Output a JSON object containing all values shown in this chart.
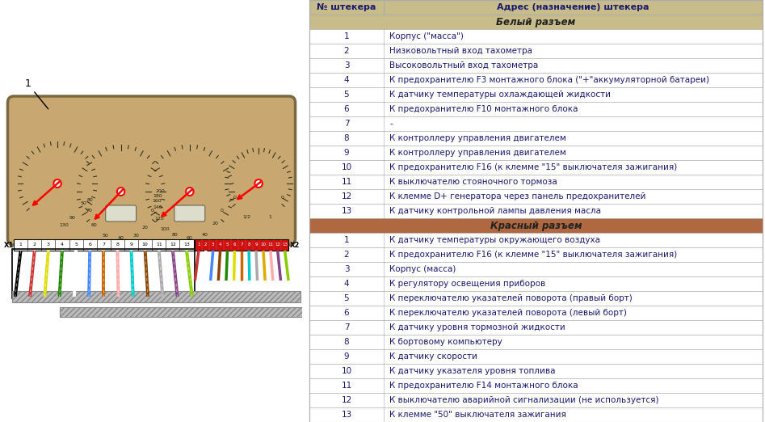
{
  "bg_color": "#ffffff",
  "col1_header": "№ штекера",
  "col2_header": "Адрес (назначение) штекера",
  "white_section_label": "Белый разъем",
  "red_section_label": "Красный разъем",
  "white_rows": [
    [
      1,
      "Корпус (\"масса\")"
    ],
    [
      2,
      "Низковольтный вход тахометра"
    ],
    [
      3,
      "Высоковольтный вход тахометра"
    ],
    [
      4,
      "К предохранителю F3 монтажного блока (\"+\"аккумуляторной батареи)"
    ],
    [
      5,
      "К датчику температуры охлаждающей жидкости"
    ],
    [
      6,
      "К предохранителю F10 монтажного блока"
    ],
    [
      7,
      "-"
    ],
    [
      8,
      "К контроллеру управления двигателем"
    ],
    [
      9,
      "К контроллеру управления двигателем"
    ],
    [
      10,
      "К предохранителю F16 (к клемме \"15\" выключателя зажигания)"
    ],
    [
      11,
      "К выключателю стояночного тормоза"
    ],
    [
      12,
      "К клемме D+ генератора через панель предохранителей"
    ],
    [
      13,
      "К датчику контрольной лампы давления масла"
    ]
  ],
  "red_rows": [
    [
      1,
      "К датчику температуры окружающего воздуха"
    ],
    [
      2,
      "К предохранителю F16 (к клемме \"15\" выключателя зажигания)"
    ],
    [
      3,
      "Корпус (масса)"
    ],
    [
      4,
      "К регулятору освещения приборов"
    ],
    [
      5,
      "К переключателю указателей поворота (правый борт)"
    ],
    [
      6,
      "К переключателю указателей поворота (левый борт)"
    ],
    [
      7,
      "К датчику уровня тормозной жидкости"
    ],
    [
      8,
      "К бортовому компьютеру"
    ],
    [
      9,
      "К датчику скорости"
    ],
    [
      10,
      "К датчику указателя уровня топлива"
    ],
    [
      11,
      "К предохранителю F14 монтажного блока"
    ],
    [
      12,
      "К выключателю аварийной сигнализации (не используется)"
    ],
    [
      13,
      "К клемме \"50\" выключателя зажигания"
    ]
  ],
  "border_color": "#aaaaaa",
  "row_text_color": "#1a1a6e",
  "header_text_color": "#1a1a6e",
  "header_bg": "#c8bc8a",
  "white_section_color": "#c8bc8a",
  "red_section_color": "#b06840",
  "cluster_bg": "#c8a870",
  "cluster_border": "#7a6840",
  "wire_colors_white": [
    "black",
    "#cc3333",
    "#dddd00",
    "#228800",
    "white",
    "#4488ff",
    "#cc6600",
    "#ffaaaa",
    "#00cccc",
    "#884400",
    "#aaaaaa",
    "#884488",
    "#88cc00"
  ],
  "wire_colors_red": [
    "#cc3333",
    "white",
    "#4488ff",
    "#884400",
    "#228800",
    "#dddd00",
    "#cc6600",
    "#00cccc",
    "#aaaaaa",
    "#ddaa00",
    "#ffaaaa",
    "#884488",
    "#88cc00"
  ]
}
